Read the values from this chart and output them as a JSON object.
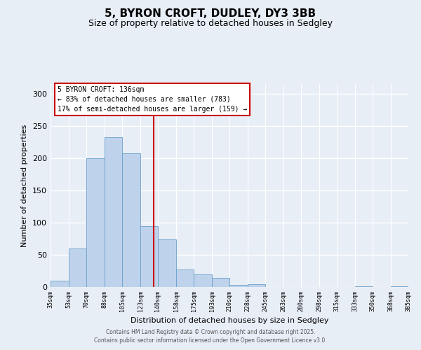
{
  "title": "5, BYRON CROFT, DUDLEY, DY3 3BB",
  "subtitle": "Size of property relative to detached houses in Sedgley",
  "xlabel": "Distribution of detached houses by size in Sedgley",
  "ylabel": "Number of detached properties",
  "bar_values": [
    10,
    60,
    200,
    232,
    208,
    95,
    74,
    27,
    20,
    14,
    3,
    4,
    0,
    0,
    0,
    0,
    0,
    1,
    0,
    1
  ],
  "bin_edges": [
    35,
    53,
    70,
    88,
    105,
    123,
    140,
    158,
    175,
    193,
    210,
    228,
    245,
    263,
    280,
    298,
    315,
    333,
    350,
    368,
    385
  ],
  "tick_labels": [
    "35sqm",
    "53sqm",
    "70sqm",
    "88sqm",
    "105sqm",
    "123sqm",
    "140sqm",
    "158sqm",
    "175sqm",
    "193sqm",
    "210sqm",
    "228sqm",
    "245sqm",
    "263sqm",
    "280sqm",
    "298sqm",
    "315sqm",
    "333sqm",
    "350sqm",
    "368sqm",
    "385sqm"
  ],
  "bar_color": "#bed3eb",
  "bar_edge_color": "#6aa0cc",
  "vline_x": 136,
  "vline_color": "#cc0000",
  "ylim": [
    0,
    315
  ],
  "yticks": [
    0,
    50,
    100,
    150,
    200,
    250,
    300
  ],
  "annotation_title": "5 BYRON CROFT: 136sqm",
  "annotation_line1": "← 83% of detached houses are smaller (783)",
  "annotation_line2": "17% of semi-detached houses are larger (159) →",
  "annotation_box_color": "#ffffff",
  "annotation_box_edge_color": "#cc0000",
  "footer1": "Contains HM Land Registry data © Crown copyright and database right 2025.",
  "footer2": "Contains public sector information licensed under the Open Government Licence v3.0.",
  "bg_color": "#e8eef6",
  "plot_bg_color": "#e8eef6",
  "title_fontsize": 11,
  "subtitle_fontsize": 9
}
